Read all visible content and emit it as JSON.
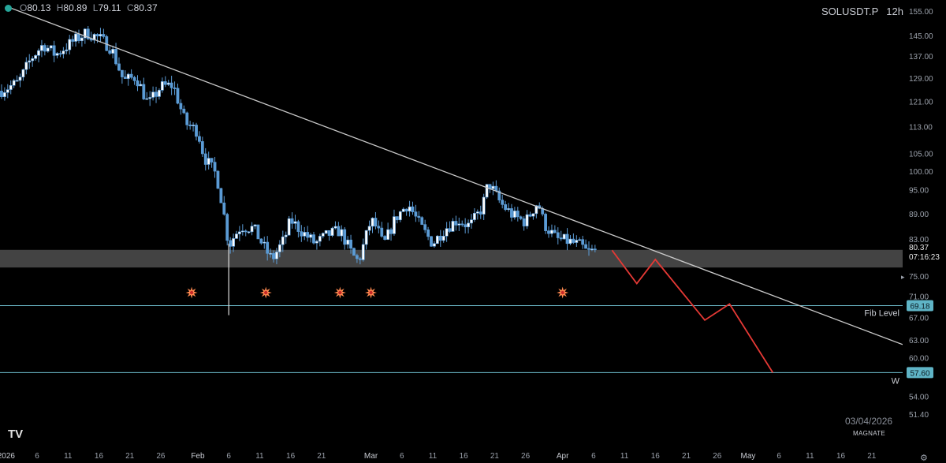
{
  "header": {
    "open_label": "O",
    "open_value": "80.13",
    "high_label": "H",
    "high_value": "80.89",
    "low_label": "L",
    "low_value": "79.11",
    "close_label": "C",
    "close_value": "80.37",
    "symbol": "SOLUSDT.P",
    "timeframe": "12h"
  },
  "footer": {
    "date": "03/04/2026",
    "author": "MAGNATE",
    "logo": "TV",
    "settings_icon": "gear-icon"
  },
  "colors": {
    "background": "#000000",
    "candle": "#5b9bd5",
    "candle_border": "#ffffff",
    "trendline": "#c9c9c9",
    "support_zone": "#4a4a4a",
    "level_line": "#6fbfcf",
    "level_badge": "#5fb4c6",
    "projection": "#e53935",
    "marker": "#ff8a50"
  },
  "chart_data": {
    "type": "candlestick",
    "symbol": "SOLUSDT.P",
    "interval": "12h",
    "y_axis": {
      "scale": "log",
      "range": [
        48.5,
        157
      ],
      "ticks": [
        155.0,
        145.0,
        137.0,
        129.0,
        121.0,
        113.0,
        105.0,
        100.0,
        95.0,
        89.0,
        83.0,
        75.0,
        71.0,
        67.0,
        63.0,
        60.0,
        54.0,
        51.4
      ]
    },
    "x_axis": {
      "range": [
        "2025-12-31",
        "2026-05-26"
      ],
      "ticks": [
        {
          "date": "2026-01-01",
          "label": "2026"
        },
        {
          "date": "2026-01-06",
          "label": "6"
        },
        {
          "date": "2026-01-11",
          "label": "11"
        },
        {
          "date": "2026-01-16",
          "label": "16"
        },
        {
          "date": "2026-01-21",
          "label": "21"
        },
        {
          "date": "2026-01-26",
          "label": "26"
        },
        {
          "date": "2026-02-01",
          "label": "Feb"
        },
        {
          "date": "2026-02-06",
          "label": "6"
        },
        {
          "date": "2026-02-11",
          "label": "11"
        },
        {
          "date": "2026-02-16",
          "label": "16"
        },
        {
          "date": "2026-02-21",
          "label": "21"
        },
        {
          "date": "2026-03-01",
          "label": "Mar"
        },
        {
          "date": "2026-03-06",
          "label": "6"
        },
        {
          "date": "2026-03-11",
          "label": "11"
        },
        {
          "date": "2026-03-16",
          "label": "16"
        },
        {
          "date": "2026-03-21",
          "label": "21"
        },
        {
          "date": "2026-03-26",
          "label": "26"
        },
        {
          "date": "2026-04-01",
          "label": "Apr"
        },
        {
          "date": "2026-04-06",
          "label": "6"
        },
        {
          "date": "2026-04-11",
          "label": "11"
        },
        {
          "date": "2026-04-16",
          "label": "16"
        },
        {
          "date": "2026-04-21",
          "label": "21"
        },
        {
          "date": "2026-04-26",
          "label": "26"
        },
        {
          "date": "2026-05-01",
          "label": "May"
        },
        {
          "date": "2026-05-06",
          "label": "6"
        },
        {
          "date": "2026-05-11",
          "label": "11"
        },
        {
          "date": "2026-05-16",
          "label": "16"
        },
        {
          "date": "2026-05-21",
          "label": "21"
        }
      ]
    },
    "price_path": [
      {
        "date": "2025-12-31",
        "price": 124.5
      },
      {
        "date": "2026-01-03",
        "price": 127.5
      },
      {
        "date": "2026-01-05",
        "price": 136.0
      },
      {
        "date": "2026-01-07",
        "price": 141.5
      },
      {
        "date": "2026-01-09",
        "price": 137.5
      },
      {
        "date": "2026-01-12",
        "price": 143.0
      },
      {
        "date": "2026-01-14",
        "price": 146.0
      },
      {
        "date": "2026-01-16",
        "price": 144.0
      },
      {
        "date": "2026-01-18",
        "price": 140.0
      },
      {
        "date": "2026-01-20",
        "price": 128.0
      },
      {
        "date": "2026-01-22",
        "price": 129.5
      },
      {
        "date": "2026-01-24",
        "price": 120.0
      },
      {
        "date": "2026-01-26",
        "price": 126.0
      },
      {
        "date": "2026-01-28",
        "price": 126.5
      },
      {
        "date": "2026-01-30",
        "price": 114.0
      },
      {
        "date": "2026-02-01",
        "price": 111.5
      },
      {
        "date": "2026-02-02",
        "price": 104.0
      },
      {
        "date": "2026-02-04",
        "price": 99.0
      },
      {
        "date": "2026-02-05",
        "price": 91.0
      },
      {
        "date": "2026-02-06",
        "price": 81.5
      },
      {
        "date": "2026-02-07",
        "price": 84.0
      },
      {
        "date": "2026-02-08",
        "price": 86.0
      },
      {
        "date": "2026-02-10",
        "price": 85.5
      },
      {
        "date": "2026-02-12",
        "price": 80.5
      },
      {
        "date": "2026-02-13",
        "price": 78.5
      },
      {
        "date": "2026-02-15",
        "price": 83.0
      },
      {
        "date": "2026-02-16",
        "price": 87.5
      },
      {
        "date": "2026-02-18",
        "price": 84.5
      },
      {
        "date": "2026-02-20",
        "price": 82.0
      },
      {
        "date": "2026-02-22",
        "price": 84.0
      },
      {
        "date": "2026-02-24",
        "price": 85.0
      },
      {
        "date": "2026-02-26",
        "price": 79.5
      },
      {
        "date": "2026-02-27",
        "price": 78.0
      },
      {
        "date": "2026-03-01",
        "price": 87.5
      },
      {
        "date": "2026-03-02",
        "price": 85.5
      },
      {
        "date": "2026-03-03",
        "price": 81.5
      },
      {
        "date": "2026-03-05",
        "price": 88.0
      },
      {
        "date": "2026-03-07",
        "price": 91.5
      },
      {
        "date": "2026-03-09",
        "price": 86.0
      },
      {
        "date": "2026-03-11",
        "price": 82.0
      },
      {
        "date": "2026-03-13",
        "price": 85.5
      },
      {
        "date": "2026-03-15",
        "price": 87.5
      },
      {
        "date": "2026-03-17",
        "price": 86.0
      },
      {
        "date": "2026-03-19",
        "price": 90.5
      },
      {
        "date": "2026-03-20",
        "price": 97.0
      },
      {
        "date": "2026-03-22",
        "price": 91.5
      },
      {
        "date": "2026-03-24",
        "price": 88.5
      },
      {
        "date": "2026-03-26",
        "price": 87.0
      },
      {
        "date": "2026-03-28",
        "price": 92.0
      },
      {
        "date": "2026-03-29",
        "price": 86.5
      },
      {
        "date": "2026-03-31",
        "price": 83.0
      },
      {
        "date": "2026-04-02",
        "price": 82.5
      },
      {
        "date": "2026-04-04",
        "price": 81.5
      },
      {
        "date": "2026-04-05",
        "price": 80.0
      },
      {
        "date": "2026-04-06",
        "price": 80.4
      }
    ],
    "last_price": 80.37,
    "countdown": "07:16:23",
    "open": 80.13,
    "high": 80.89,
    "low": 79.11,
    "close": 80.37,
    "trendline": {
      "start": {
        "date": "2026-01-01",
        "price": 157.0
      },
      "end": {
        "date": "2026-05-26",
        "price": 62.2
      }
    },
    "support_zone": {
      "from": 76.8,
      "to": 80.6
    },
    "levels": [
      {
        "price": 69.18,
        "label": "Fib Level",
        "badge": "69.18"
      },
      {
        "price": 57.6,
        "label": "W",
        "badge": "57.60"
      }
    ],
    "projection": [
      {
        "date": "2026-04-09",
        "price": 80.5
      },
      {
        "date": "2026-04-13",
        "price": 73.5
      },
      {
        "date": "2026-04-16",
        "price": 78.5
      },
      {
        "date": "2026-04-24",
        "price": 66.5
      },
      {
        "date": "2026-04-28",
        "price": 69.5
      },
      {
        "date": "2026-05-05",
        "price": 57.6
      }
    ],
    "markers": [
      {
        "date": "2026-01-31"
      },
      {
        "date": "2026-02-12"
      },
      {
        "date": "2026-02-24"
      },
      {
        "date": "2026-03-01"
      },
      {
        "date": "2026-04-01"
      }
    ]
  }
}
